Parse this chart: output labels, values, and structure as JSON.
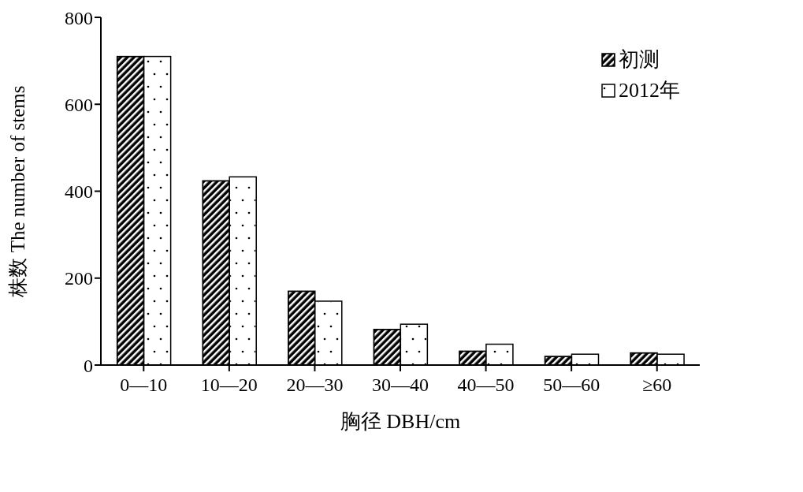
{
  "chart_data": {
    "type": "bar",
    "xlabel": "胸径 DBH/cm",
    "ylabel": "株数 The number of stems",
    "categories": [
      "0—10",
      "10—20",
      "20—30",
      "30—40",
      "40—50",
      "50—60",
      "≥60"
    ],
    "series": [
      {
        "name": "初测",
        "color": "#000000",
        "values": [
          710,
          424,
          170,
          82,
          32,
          20,
          28
        ]
      },
      {
        "name": "2012年",
        "color": "#ffffff",
        "values": [
          710,
          433,
          147,
          94,
          48,
          25,
          25
        ]
      }
    ],
    "ylim": [
      0,
      800
    ],
    "yticks": [
      0,
      200,
      400,
      600,
      800
    ],
    "grid": false,
    "legend": "top right"
  }
}
